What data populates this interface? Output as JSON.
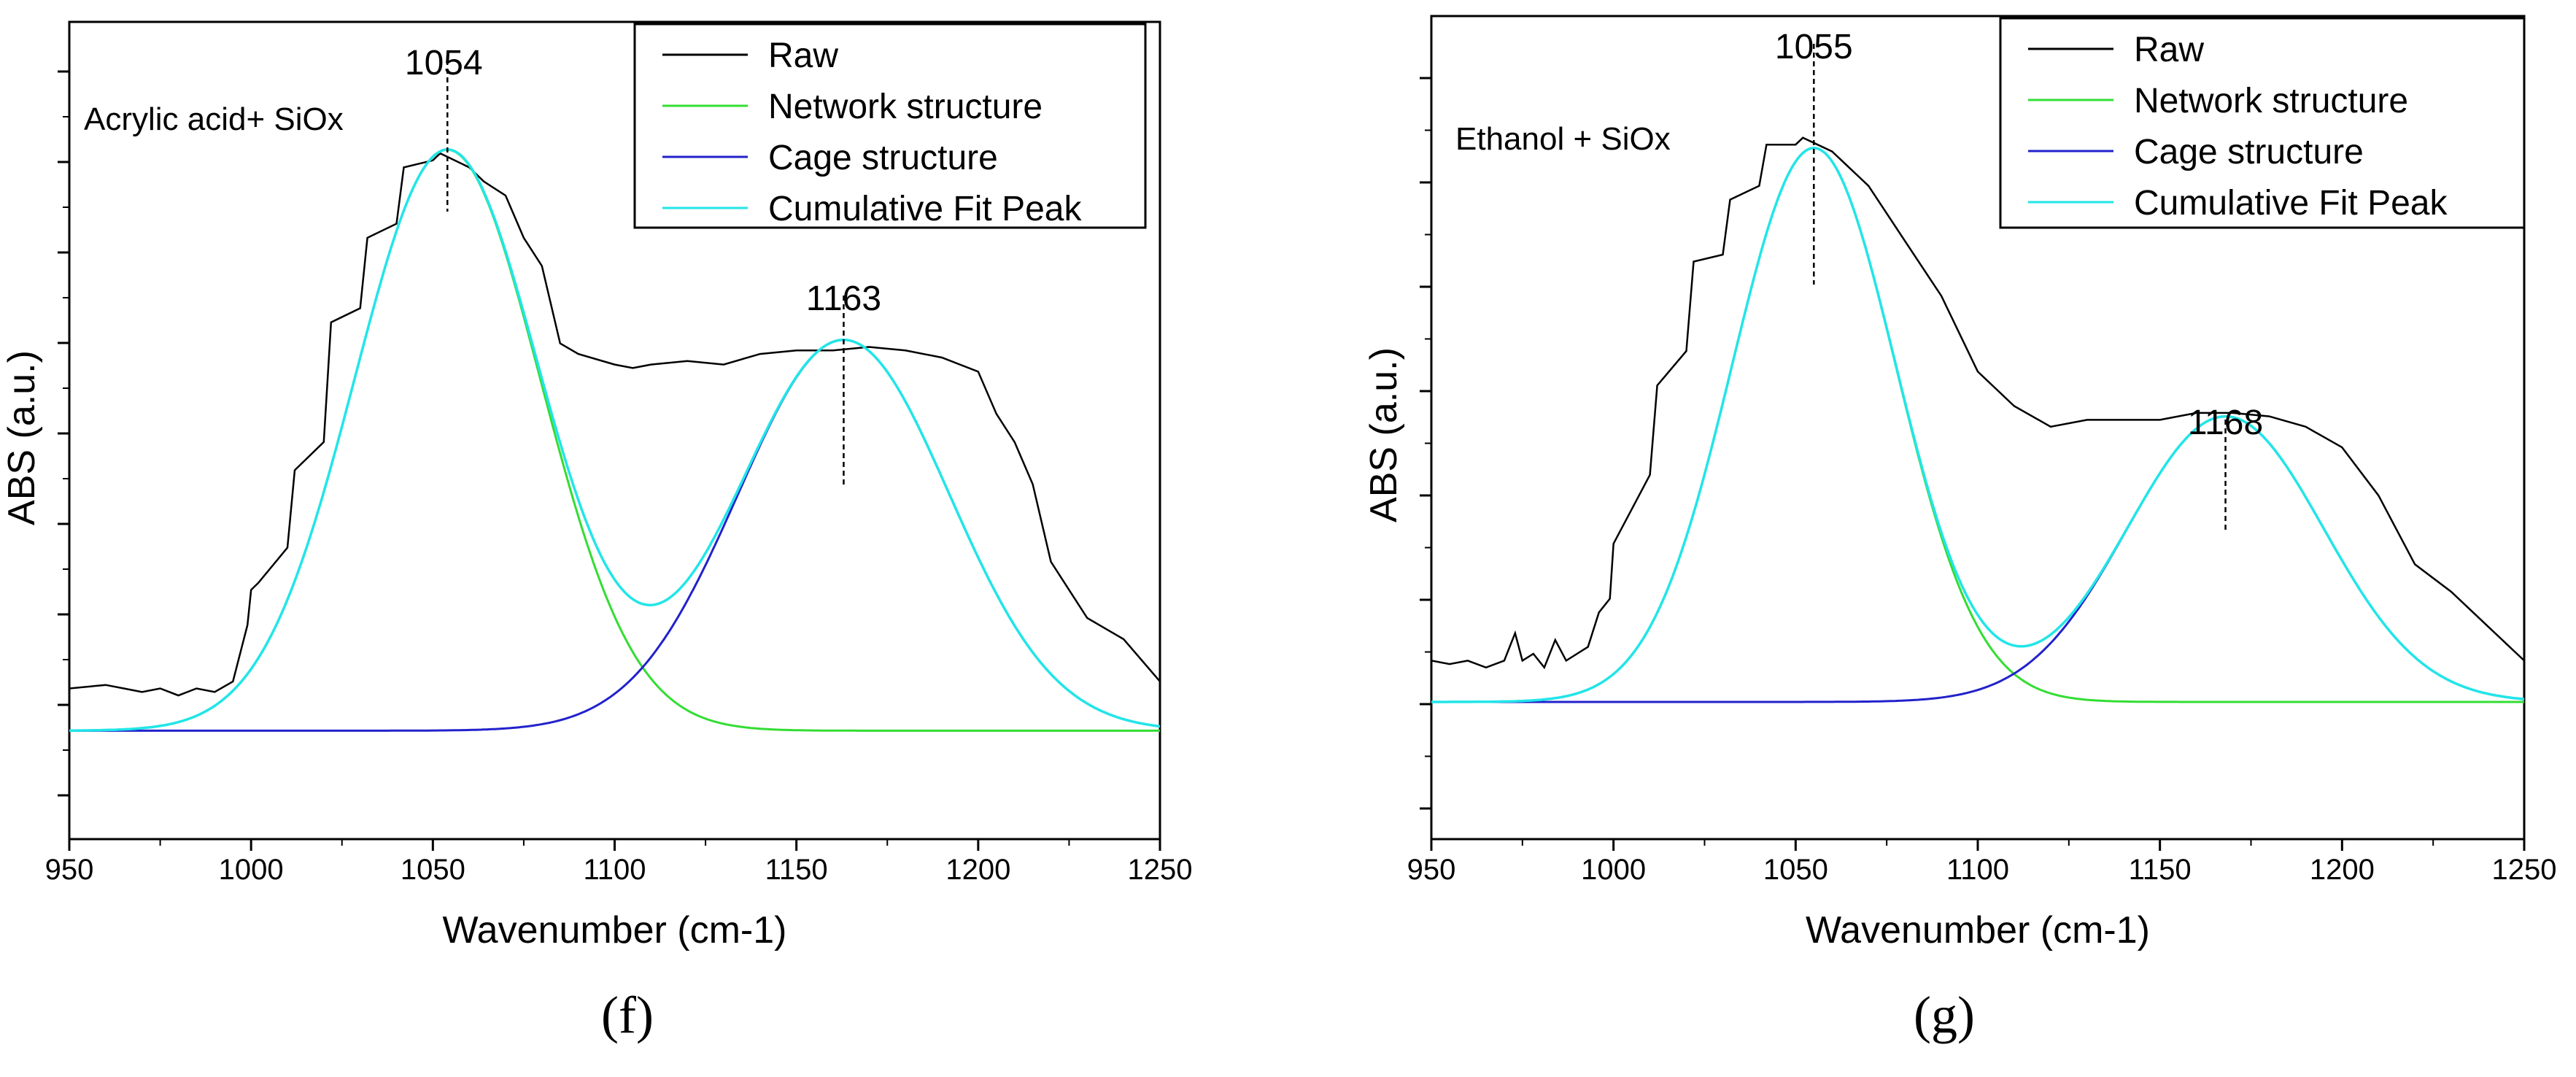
{
  "colors": {
    "raw": "#000000",
    "network": "#33dd33",
    "cage": "#2222cc",
    "cumulative": "#22e5e8",
    "axis": "#000000"
  },
  "chart_data": [
    {
      "type": "line",
      "panel_label": "(f)",
      "sample_label": "Acrylic acid+ SiOx",
      "xlabel": "Wavenumber (cm-1)",
      "ylabel": "ABS (a.u.)",
      "xlim": [
        950,
        1250
      ],
      "ylim": [
        0,
        1
      ],
      "x_ticks": [
        950,
        1000,
        1050,
        1100,
        1150,
        1200,
        1250
      ],
      "legend": [
        "Raw",
        "Network structure",
        "Cage structure",
        "Cumulative Fit Peak"
      ],
      "legend_position": "top-right",
      "peaks": [
        {
          "position": 1054,
          "label": "1054"
        },
        {
          "position": 1163,
          "label": "1163"
        }
      ],
      "baseline": 0.04,
      "components": [
        {
          "name": "Network structure",
          "center": 1054,
          "height": 0.825,
          "sigma": 25.5
        },
        {
          "name": "Cage structure",
          "center": 1163,
          "height": 0.555,
          "sigma": 29
        }
      ],
      "raw": {
        "x": [
          950,
          960,
          965,
          970,
          975,
          980,
          985,
          990,
          995,
          999,
          1000,
          1002,
          1010,
          1012,
          1020,
          1022,
          1030,
          1032,
          1040,
          1042,
          1050,
          1052,
          1060,
          1064,
          1070,
          1075,
          1080,
          1085,
          1090,
          1100,
          1105,
          1110,
          1120,
          1130,
          1140,
          1150,
          1160,
          1170,
          1180,
          1190,
          1200,
          1205,
          1210,
          1215,
          1220,
          1225,
          1230,
          1240,
          1250
        ],
        "y": [
          0.1,
          0.105,
          0.1,
          0.095,
          0.1,
          0.09,
          0.1,
          0.095,
          0.11,
          0.19,
          0.24,
          0.25,
          0.3,
          0.41,
          0.45,
          0.62,
          0.64,
          0.74,
          0.76,
          0.84,
          0.85,
          0.86,
          0.84,
          0.82,
          0.8,
          0.74,
          0.7,
          0.59,
          0.575,
          0.56,
          0.555,
          0.56,
          0.565,
          0.56,
          0.575,
          0.58,
          0.58,
          0.585,
          0.58,
          0.57,
          0.55,
          0.49,
          0.45,
          0.39,
          0.28,
          0.24,
          0.2,
          0.17,
          0.11
        ]
      }
    },
    {
      "type": "line",
      "panel_label": "(g)",
      "sample_label": "Ethanol + SiOx",
      "xlabel": "Wavenumber (cm-1)",
      "ylabel": "ABS (a.u.)",
      "xlim": [
        950,
        1250
      ],
      "ylim": [
        0,
        1
      ],
      "x_ticks": [
        950,
        1000,
        1050,
        1100,
        1150,
        1200,
        1250
      ],
      "legend": [
        "Raw",
        "Network structure",
        "Cage structure",
        "Cumulative Fit Peak"
      ],
      "legend_position": "top-right",
      "peaks": [
        {
          "position": 1055,
          "label": "1055"
        },
        {
          "position": 1168,
          "label": "1168"
        }
      ],
      "baseline": 0.07,
      "components": [
        {
          "name": "Network structure",
          "center": 1055,
          "height": 0.805,
          "sigma": 22.5
        },
        {
          "name": "Cage structure",
          "center": 1168,
          "height": 0.415,
          "sigma": 27
        }
      ],
      "raw": {
        "x": [
          950,
          955,
          960,
          965,
          970,
          973,
          975,
          978,
          981,
          984,
          987,
          990,
          993,
          996,
          999,
          1000,
          1010,
          1012,
          1020,
          1022,
          1030,
          1032,
          1040,
          1042,
          1050,
          1052,
          1060,
          1070,
          1080,
          1090,
          1100,
          1110,
          1120,
          1130,
          1140,
          1150,
          1160,
          1170,
          1180,
          1190,
          1200,
          1210,
          1220,
          1230,
          1240,
          1250
        ],
        "y": [
          0.13,
          0.125,
          0.13,
          0.12,
          0.13,
          0.17,
          0.13,
          0.14,
          0.12,
          0.16,
          0.13,
          0.14,
          0.15,
          0.2,
          0.22,
          0.3,
          0.4,
          0.53,
          0.58,
          0.71,
          0.72,
          0.8,
          0.82,
          0.88,
          0.88,
          0.89,
          0.87,
          0.82,
          0.74,
          0.66,
          0.55,
          0.5,
          0.47,
          0.48,
          0.48,
          0.48,
          0.49,
          0.49,
          0.485,
          0.47,
          0.44,
          0.37,
          0.27,
          0.23,
          0.18,
          0.13
        ]
      }
    }
  ]
}
